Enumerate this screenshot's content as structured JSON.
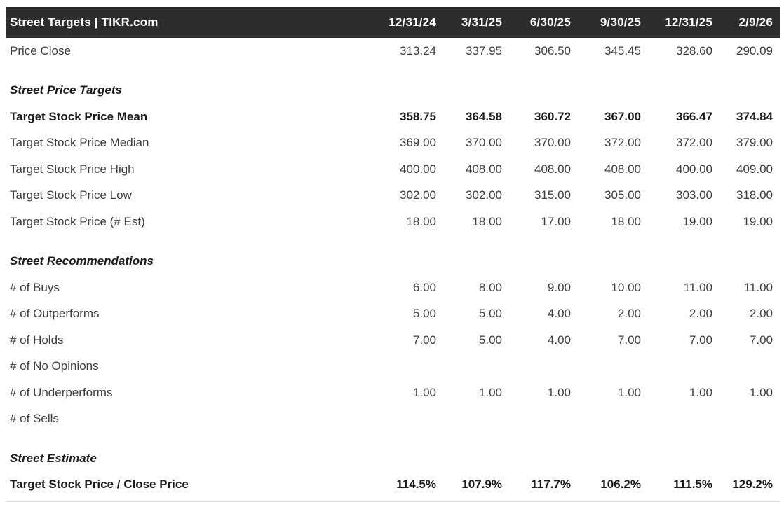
{
  "header": {
    "title": "Street Targets | TIKR.com",
    "dates": [
      "12/31/24",
      "3/31/25",
      "6/30/25",
      "9/30/25",
      "12/31/25",
      "2/9/26"
    ]
  },
  "colors": {
    "header_bg": "#2d2d2d",
    "header_text": "#ffffff",
    "body_text": "#3d3d3d",
    "emphasis_text": "#1c1c1c",
    "background": "#ffffff"
  },
  "rows": [
    {
      "type": "data",
      "label": "Price Close",
      "values": [
        "313.24",
        "337.95",
        "306.50",
        "345.45",
        "328.60",
        "290.09"
      ]
    },
    {
      "type": "section",
      "title": "Street Price Targets"
    },
    {
      "type": "data",
      "bold": true,
      "label": "Target Stock Price Mean",
      "values": [
        "358.75",
        "364.58",
        "360.72",
        "367.00",
        "366.47",
        "374.84"
      ]
    },
    {
      "type": "data",
      "label": "Target Stock Price Median",
      "values": [
        "369.00",
        "370.00",
        "370.00",
        "372.00",
        "372.00",
        "379.00"
      ]
    },
    {
      "type": "data",
      "label": "Target Stock Price High",
      "values": [
        "400.00",
        "408.00",
        "408.00",
        "408.00",
        "400.00",
        "409.00"
      ]
    },
    {
      "type": "data",
      "label": "Target Stock Price Low",
      "values": [
        "302.00",
        "302.00",
        "315.00",
        "305.00",
        "303.00",
        "318.00"
      ]
    },
    {
      "type": "data",
      "label": "Target Stock Price (# Est)",
      "values": [
        "18.00",
        "18.00",
        "17.00",
        "18.00",
        "19.00",
        "19.00"
      ]
    },
    {
      "type": "section",
      "title": "Street Recommendations"
    },
    {
      "type": "data",
      "label": "# of Buys",
      "values": [
        "6.00",
        "8.00",
        "9.00",
        "10.00",
        "11.00",
        "11.00"
      ]
    },
    {
      "type": "data",
      "label": "# of Outperforms",
      "values": [
        "5.00",
        "5.00",
        "4.00",
        "2.00",
        "2.00",
        "2.00"
      ]
    },
    {
      "type": "data",
      "label": "# of Holds",
      "values": [
        "7.00",
        "5.00",
        "4.00",
        "7.00",
        "7.00",
        "7.00"
      ]
    },
    {
      "type": "data",
      "label": "# of No Opinions",
      "values": [
        "",
        "",
        "",
        "",
        "",
        ""
      ]
    },
    {
      "type": "data",
      "label": "# of Underperforms",
      "values": [
        "1.00",
        "1.00",
        "1.00",
        "1.00",
        "1.00",
        "1.00"
      ]
    },
    {
      "type": "data",
      "label": "# of Sells",
      "values": [
        "",
        "",
        "",
        "",
        "",
        ""
      ]
    },
    {
      "type": "section",
      "title": "Street Estimate"
    },
    {
      "type": "data",
      "bold": true,
      "label": "Target Stock Price / Close Price",
      "values": [
        "114.5%",
        "107.9%",
        "117.7%",
        "106.2%",
        "111.5%",
        "129.2%"
      ]
    }
  ],
  "chart_data": {
    "type": "table",
    "title": "Street Targets | TIKR.com",
    "columns": [
      "12/31/24",
      "3/31/25",
      "6/30/25",
      "9/30/25",
      "12/31/25",
      "2/9/26"
    ],
    "sections": [
      {
        "name": "",
        "rows": [
          {
            "label": "Price Close",
            "values": [
              313.24,
              337.95,
              306.5,
              345.45,
              328.6,
              290.09
            ]
          }
        ]
      },
      {
        "name": "Street Price Targets",
        "rows": [
          {
            "label": "Target Stock Price Mean",
            "values": [
              358.75,
              364.58,
              360.72,
              367.0,
              366.47,
              374.84
            ]
          },
          {
            "label": "Target Stock Price Median",
            "values": [
              369.0,
              370.0,
              370.0,
              372.0,
              372.0,
              379.0
            ]
          },
          {
            "label": "Target Stock Price High",
            "values": [
              400.0,
              408.0,
              408.0,
              408.0,
              400.0,
              409.0
            ]
          },
          {
            "label": "Target Stock Price Low",
            "values": [
              302.0,
              302.0,
              315.0,
              305.0,
              303.0,
              318.0
            ]
          },
          {
            "label": "Target Stock Price (# Est)",
            "values": [
              18,
              18,
              17,
              18,
              19,
              19
            ]
          }
        ]
      },
      {
        "name": "Street Recommendations",
        "rows": [
          {
            "label": "# of Buys",
            "values": [
              6,
              8,
              9,
              10,
              11,
              11
            ]
          },
          {
            "label": "# of Outperforms",
            "values": [
              5,
              5,
              4,
              2,
              2,
              2
            ]
          },
          {
            "label": "# of Holds",
            "values": [
              7,
              5,
              4,
              7,
              7,
              7
            ]
          },
          {
            "label": "# of No Opinions",
            "values": [
              null,
              null,
              null,
              null,
              null,
              null
            ]
          },
          {
            "label": "# of Underperforms",
            "values": [
              1,
              1,
              1,
              1,
              1,
              1
            ]
          },
          {
            "label": "# of Sells",
            "values": [
              null,
              null,
              null,
              null,
              null,
              null
            ]
          }
        ]
      },
      {
        "name": "Street Estimate",
        "rows": [
          {
            "label": "Target Stock Price / Close Price",
            "unit": "%",
            "values": [
              114.5,
              107.9,
              117.7,
              106.2,
              111.5,
              129.2
            ]
          }
        ]
      }
    ]
  }
}
